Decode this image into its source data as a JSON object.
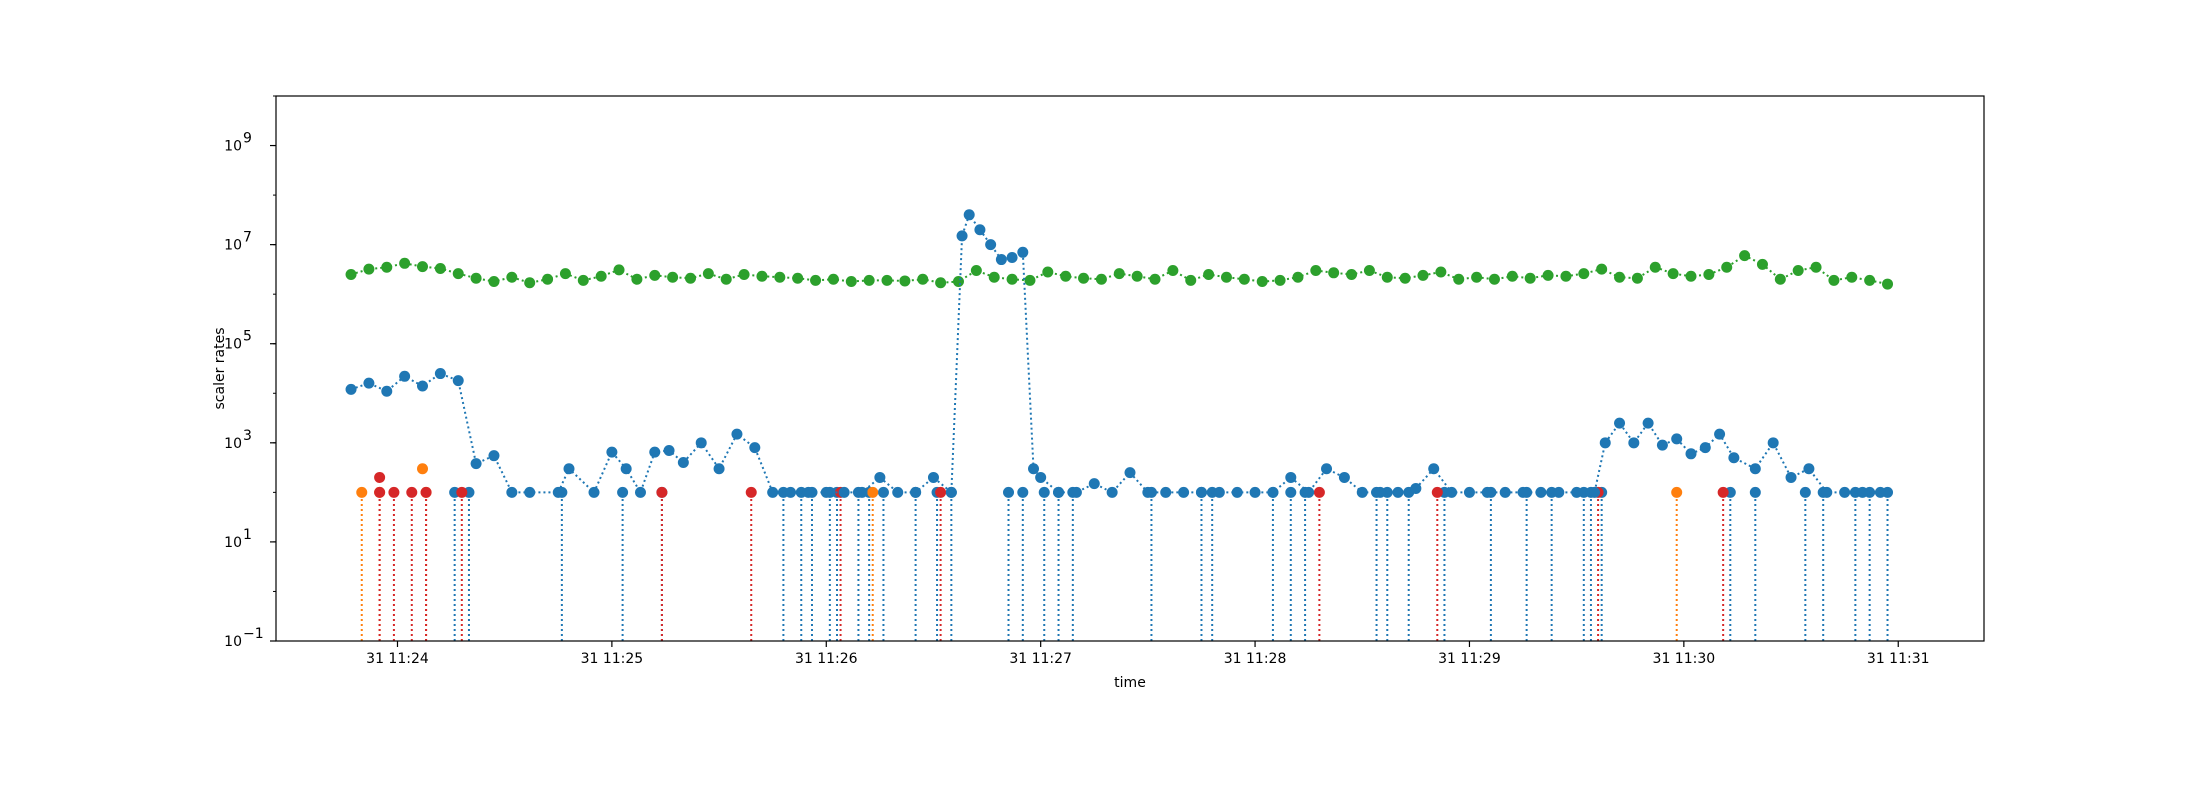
{
  "chart_data": {
    "type": "scatter",
    "title": "",
    "xlabel": "time",
    "ylabel": "scaler rates",
    "yscale": "log",
    "xlim": [
      "11:23:26",
      "11:31:24"
    ],
    "ylim": [
      0.1,
      10000000000
    ],
    "grid": false,
    "legend": "none",
    "x_ticks": [
      {
        "t": "11:24:00",
        "label": "31 11:24"
      },
      {
        "t": "11:25:00",
        "label": "31 11:25"
      },
      {
        "t": "11:26:00",
        "label": "31 11:26"
      },
      {
        "t": "11:27:00",
        "label": "31 11:27"
      },
      {
        "t": "11:28:00",
        "label": "31 11:28"
      },
      {
        "t": "11:29:00",
        "label": "31 11:29"
      },
      {
        "t": "11:30:00",
        "label": "31 11:30"
      },
      {
        "t": "11:31:00",
        "label": "31 11:31"
      }
    ],
    "y_ticks": [
      {
        "value": 0.1,
        "base": "10",
        "exp": "−1"
      },
      {
        "value": 10,
        "base": "10",
        "exp": "1"
      },
      {
        "value": 1000,
        "base": "10",
        "exp": "3"
      },
      {
        "value": 100000,
        "base": "10",
        "exp": "5"
      },
      {
        "value": 10000000,
        "base": "10",
        "exp": "7"
      },
      {
        "value": 1000000000,
        "base": "10",
        "exp": "9"
      }
    ],
    "series": [
      {
        "color": "#2ca02c",
        "style": "dotted-line-markers",
        "x": [
          "11:23:47",
          "11:23:52",
          "11:23:57",
          "11:24:02",
          "11:24:07",
          "11:24:12",
          "11:24:17",
          "11:24:22",
          "11:24:27",
          "11:24:32",
          "11:24:37",
          "11:24:42",
          "11:24:47",
          "11:24:52",
          "11:24:57",
          "11:25:02",
          "11:25:07",
          "11:25:12",
          "11:25:17",
          "11:25:22",
          "11:25:27",
          "11:25:32",
          "11:25:37",
          "11:25:42",
          "11:25:47",
          "11:25:52",
          "11:25:57",
          "11:26:02",
          "11:26:07",
          "11:26:12",
          "11:26:17",
          "11:26:22",
          "11:26:27",
          "11:26:32",
          "11:26:37",
          "11:26:42",
          "11:26:47",
          "11:26:52",
          "11:26:57",
          "11:27:02",
          "11:27:07",
          "11:27:12",
          "11:27:17",
          "11:27:22",
          "11:27:27",
          "11:27:32",
          "11:27:37",
          "11:27:42",
          "11:27:47",
          "11:27:52",
          "11:27:57",
          "11:28:02",
          "11:28:07",
          "11:28:12",
          "11:28:17",
          "11:28:22",
          "11:28:27",
          "11:28:32",
          "11:28:37",
          "11:28:42",
          "11:28:47",
          "11:28:52",
          "11:28:57",
          "11:29:02",
          "11:29:07",
          "11:29:12",
          "11:29:17",
          "11:29:22",
          "11:29:27",
          "11:29:32",
          "11:29:37",
          "11:29:42",
          "11:29:47",
          "11:29:52",
          "11:29:57",
          "11:30:02",
          "11:30:07",
          "11:30:12",
          "11:30:17",
          "11:30:22",
          "11:30:27",
          "11:30:32",
          "11:30:37",
          "11:30:42",
          "11:30:47",
          "11:30:52",
          "11:30:57"
        ],
        "y": [
          2500000,
          3200000,
          3500000,
          4200000,
          3600000,
          3300000,
          2600000,
          2100000,
          1800000,
          2200000,
          1700000,
          2000000,
          2600000,
          1900000,
          2300000,
          3100000,
          2000000,
          2400000,
          2200000,
          2100000,
          2600000,
          2000000,
          2500000,
          2300000,
          2200000,
          2100000,
          1900000,
          2000000,
          1800000,
          1900000,
          1900000,
          1850000,
          2000000,
          1700000,
          1800000,
          3000000,
          2200000,
          2000000,
          1900000,
          2800000,
          2300000,
          2100000,
          2000000,
          2600000,
          2300000,
          2000000,
          3000000,
          1900000,
          2500000,
          2200000,
          2000000,
          1800000,
          1900000,
          2200000,
          3000000,
          2700000,
          2500000,
          3000000,
          2200000,
          2100000,
          2400000,
          2800000,
          2000000,
          2200000,
          2000000,
          2300000,
          2100000,
          2400000,
          2300000,
          2600000,
          3200000,
          2200000,
          2100000,
          3500000,
          2600000,
          2300000,
          2500000,
          3500000,
          6000000,
          4000000,
          2000000,
          3000000,
          3500000,
          1900000,
          2200000,
          1900000,
          1600000
        ]
      },
      {
        "color": "#1f77b4",
        "style": "dotted-line-markers",
        "x": [
          "11:23:47",
          "11:23:52",
          "11:23:57",
          "11:24:02",
          "11:24:07",
          "11:24:12",
          "11:24:17",
          "11:24:22",
          "11:24:27",
          "11:24:32",
          "11:24:37",
          "11:24:45",
          "11:24:48",
          "11:24:55",
          "11:25:00",
          "11:25:04",
          "11:25:08",
          "11:25:12",
          "11:25:16",
          "11:25:20",
          "11:25:25",
          "11:25:30",
          "11:25:35",
          "11:25:40",
          "11:25:45",
          "11:25:50",
          "11:25:55",
          "11:26:00",
          "11:26:05",
          "11:26:10",
          "11:26:15",
          "11:26:20",
          "11:26:25",
          "11:26:30",
          "11:26:35",
          "11:26:38",
          "11:26:40",
          "11:26:43",
          "11:26:46",
          "11:26:49",
          "11:26:52",
          "11:26:55",
          "11:26:58",
          "11:27:00",
          "11:27:05",
          "11:27:10",
          "11:27:15",
          "11:27:20",
          "11:27:25",
          "11:27:30",
          "11:27:35",
          "11:27:40",
          "11:27:45",
          "11:27:50",
          "11:27:55",
          "11:28:00",
          "11:28:05",
          "11:28:10",
          "11:28:15",
          "11:28:20",
          "11:28:25",
          "11:28:30",
          "11:28:35",
          "11:28:40",
          "11:28:45",
          "11:28:50",
          "11:28:55",
          "11:29:00",
          "11:29:05",
          "11:29:10",
          "11:29:15",
          "11:29:20",
          "11:29:25",
          "11:29:30",
          "11:29:35",
          "11:29:38",
          "11:29:42",
          "11:29:46",
          "11:29:50",
          "11:29:54",
          "11:29:58",
          "11:30:02",
          "11:30:06",
          "11:30:10",
          "11:30:14",
          "11:30:20",
          "11:30:25",
          "11:30:30",
          "11:30:35",
          "11:30:40",
          "11:30:45",
          "11:30:50",
          "11:30:55"
        ],
        "y": [
          12000,
          16000,
          11000,
          22000,
          14000,
          25000,
          18000,
          380,
          550,
          100,
          100,
          100,
          300,
          100,
          650,
          300,
          100,
          650,
          700,
          400,
          1000,
          300,
          1500,
          800,
          100,
          100,
          100,
          100,
          100,
          100,
          200,
          100,
          100,
          200,
          100,
          15000000,
          40000000,
          20000000,
          10000000,
          5000000,
          5500000,
          7000000,
          300,
          200,
          100,
          100,
          150,
          100,
          250,
          100,
          100,
          100,
          100,
          100,
          100,
          100,
          100,
          200,
          100,
          300,
          200,
          100,
          100,
          100,
          120,
          300,
          100,
          100,
          100,
          100,
          100,
          100,
          100,
          100,
          100,
          1000,
          2500,
          1000,
          2500,
          900,
          1200,
          600,
          800,
          1500,
          500,
          300,
          1000,
          200,
          300,
          100,
          100,
          100,
          100
        ]
      }
    ],
    "zero_markers": {
      "blue_t": [
        "11:24:16",
        "11:24:20",
        "11:24:46",
        "11:25:03",
        "11:25:14",
        "11:25:48",
        "11:25:53",
        "11:25:56",
        "11:26:01",
        "11:26:03",
        "11:26:09",
        "11:26:12",
        "11:26:16",
        "11:26:25",
        "11:26:31",
        "11:26:35",
        "11:26:51",
        "11:26:55",
        "11:27:01",
        "11:27:05",
        "11:27:09",
        "11:27:31",
        "11:27:45",
        "11:27:48",
        "11:28:05",
        "11:28:10",
        "11:28:14",
        "11:28:34",
        "11:28:37",
        "11:28:43",
        "11:28:53",
        "11:29:06",
        "11:29:16",
        "11:29:23",
        "11:29:32",
        "11:29:34",
        "11:29:37",
        "11:30:13",
        "11:30:20",
        "11:30:34",
        "11:30:39",
        "11:30:48",
        "11:30:52",
        "11:30:57"
      ],
      "orange_t": [
        "11:23:50",
        "11:23:55",
        "11:24:08",
        "11:26:13",
        "11:29:58"
      ],
      "red_t": [
        "11:23:55",
        "11:23:59",
        "11:24:04",
        "11:24:08",
        "11:24:18",
        "11:25:14",
        "11:25:39",
        "11:26:04",
        "11:26:32",
        "11:28:18",
        "11:28:51",
        "11:29:36",
        "11:30:11"
      ],
      "value": 100
    },
    "special_points": [
      {
        "t": "11:23:55",
        "y": 200,
        "color": "#d62728"
      },
      {
        "t": "11:24:07",
        "y": 300,
        "color": "#ff7f0e"
      }
    ]
  }
}
